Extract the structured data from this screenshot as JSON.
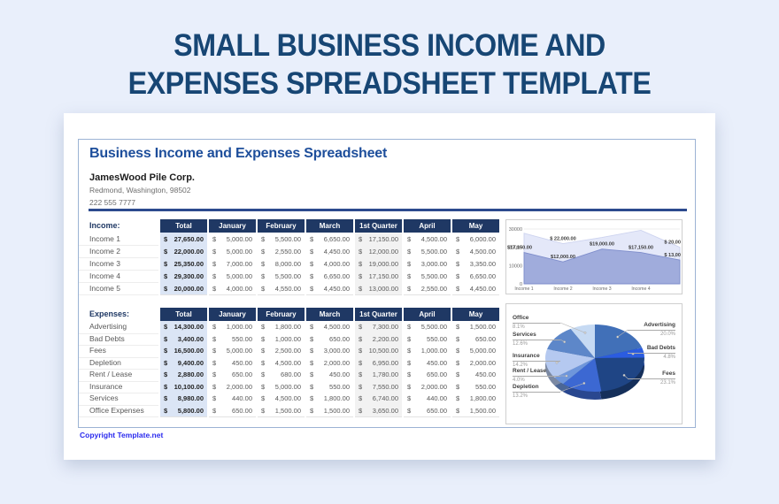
{
  "page": {
    "title_line1": "SMALL BUSINESS INCOME AND",
    "title_line2": "EXPENSES SPREADSHEET TEMPLATE"
  },
  "sheet": {
    "heading": "Business Income and Expenses Spreadsheet",
    "company": {
      "name": "JamesWood Pile Corp.",
      "address": "Redmond, Washington, 98502",
      "phone": "222 555 7777"
    },
    "currency_symbol": "$",
    "columns": [
      "Total",
      "January",
      "February",
      "March",
      "1st Quarter",
      "April",
      "May"
    ],
    "income": {
      "label": "Income:",
      "rows": [
        {
          "name": "Income 1",
          "values": [
            "27,650.00",
            "5,000.00",
            "5,500.00",
            "6,650.00",
            "17,150.00",
            "4,500.00",
            "6,000.00"
          ]
        },
        {
          "name": "Income 2",
          "values": [
            "22,000.00",
            "5,000.00",
            "2,550.00",
            "4,450.00",
            "12,000.00",
            "5,500.00",
            "4,500.00"
          ]
        },
        {
          "name": "Income 3",
          "values": [
            "25,350.00",
            "7,000.00",
            "8,000.00",
            "4,000.00",
            "19,000.00",
            "3,000.00",
            "3,350.00"
          ]
        },
        {
          "name": "Income 4",
          "values": [
            "29,300.00",
            "5,000.00",
            "5,500.00",
            "6,650.00",
            "17,150.00",
            "5,500.00",
            "6,650.00"
          ]
        },
        {
          "name": "Income 5",
          "values": [
            "20,000.00",
            "4,000.00",
            "4,550.00",
            "4,450.00",
            "13,000.00",
            "2,550.00",
            "4,450.00"
          ]
        }
      ]
    },
    "expenses": {
      "label": "Expenses:",
      "rows": [
        {
          "name": "Advertising",
          "values": [
            "14,300.00",
            "1,000.00",
            "1,800.00",
            "4,500.00",
            "7,300.00",
            "5,500.00",
            "1,500.00"
          ]
        },
        {
          "name": "Bad Debts",
          "values": [
            "3,400.00",
            "550.00",
            "1,000.00",
            "650.00",
            "2,200.00",
            "550.00",
            "650.00"
          ]
        },
        {
          "name": "Fees",
          "values": [
            "16,500.00",
            "5,000.00",
            "2,500.00",
            "3,000.00",
            "10,500.00",
            "1,000.00",
            "5,000.00"
          ]
        },
        {
          "name": "Depletion",
          "values": [
            "9,400.00",
            "450.00",
            "4,500.00",
            "2,000.00",
            "6,950.00",
            "450.00",
            "2,000.00"
          ]
        },
        {
          "name": "Rent / Lease",
          "values": [
            "2,880.00",
            "650.00",
            "680.00",
            "450.00",
            "1,780.00",
            "650.00",
            "450.00"
          ]
        },
        {
          "name": "Insurance",
          "values": [
            "10,100.00",
            "2,000.00",
            "5,000.00",
            "550.00",
            "7,550.00",
            "2,000.00",
            "550.00"
          ]
        },
        {
          "name": "Services",
          "values": [
            "8,980.00",
            "440.00",
            "4,500.00",
            "1,800.00",
            "6,740.00",
            "440.00",
            "1,800.00"
          ]
        },
        {
          "name": "Office Expenses",
          "values": [
            "5,800.00",
            "650.00",
            "1,500.00",
            "1,500.00",
            "3,650.00",
            "650.00",
            "1,500.00"
          ]
        }
      ]
    },
    "footer_link": "Copyright Template.net"
  },
  "chart_data": [
    {
      "type": "area",
      "title": "",
      "categories": [
        "Income 1",
        "Income 2",
        "Income 3",
        "Income 4",
        "Income 5"
      ],
      "visible_x_labels": [
        "Income 1",
        "Income 2",
        "Income 3",
        "Income 4"
      ],
      "series": [
        {
          "name": "Total",
          "values": [
            27650,
            22000,
            25350,
            29300,
            20000
          ],
          "fill": "#e4e8f9",
          "stroke": "#cdd3ef"
        },
        {
          "name": "1st Quarter",
          "values": [
            17150,
            12000,
            19000,
            17150,
            13000
          ],
          "fill": "#a0acdc",
          "stroke": "#7e8dcb"
        }
      ],
      "ylim": [
        0,
        30000
      ],
      "yticks": [
        0,
        10000,
        20000,
        30000
      ],
      "grid": true,
      "legend": "none",
      "point_labels": [
        {
          "series": 1,
          "point": 0,
          "text": "$17,150.00",
          "anchor": "start"
        },
        {
          "series": 0,
          "point": 1,
          "text": "$ 22,000.00",
          "anchor": "middle"
        },
        {
          "series": 1,
          "point": 1,
          "text": "$12,000.00",
          "anchor": "middle"
        },
        {
          "series": 1,
          "point": 2,
          "text": "$19,000.00",
          "anchor": "middle"
        },
        {
          "series": 1,
          "point": 3,
          "text": "$17,150.00",
          "anchor": "middle"
        },
        {
          "series": 0,
          "point": 4,
          "text": "$ 20,00",
          "anchor": "end"
        },
        {
          "series": 1,
          "point": 4,
          "text": "$ 13,00",
          "anchor": "end"
        }
      ]
    },
    {
      "type": "pie",
      "style": "3d",
      "title": "",
      "labels": [
        "Advertising",
        "Bad Debts",
        "Fees",
        "Depletion",
        "Rent / Lease",
        "Insurance",
        "Services",
        "Office"
      ],
      "values": [
        20.0,
        4.8,
        23.1,
        13.2,
        4.0,
        14.2,
        12.6,
        8.1
      ],
      "pct_labels": [
        "20.0%",
        "4.8%",
        "23.1%",
        "13.2%",
        "4.0%",
        "14.2%",
        "12.6%",
        "8.1%"
      ],
      "colors": [
        "#4170b8",
        "#2b5ce0",
        "#1f4585",
        "#3c68d2",
        "#6e96db",
        "#b5c9f0",
        "#5d87c9",
        "#c6daf3"
      ],
      "label_side": [
        "right",
        "right",
        "right",
        "left",
        "left",
        "left",
        "left",
        "left"
      ],
      "label_y": [
        20,
        46,
        75,
        90,
        72,
        55,
        31,
        12
      ],
      "legend": "callout-labels"
    }
  ],
  "colors": {
    "page_bg": "#e9effb",
    "title": "#174674",
    "heading": "#1d4e9b",
    "table_header_bg": "#1f3864",
    "total_col_bg": "#dbe5f5",
    "quarter_col_bg": "#f2f2f2",
    "cell_text": "#595959",
    "divider": "#2c4a8e",
    "frame_border": "#9cb3d4",
    "chart_box_border": "#cfcfcf",
    "copyright_link": "#2a2aee"
  }
}
